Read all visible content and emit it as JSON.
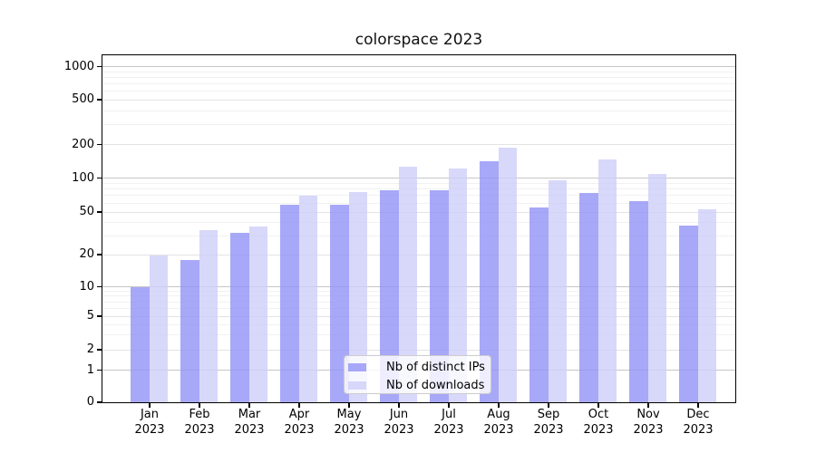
{
  "title": "colorspace 2023",
  "chart_data": {
    "type": "bar",
    "title": "colorspace 2023",
    "categories": [
      "Jan",
      "Feb",
      "Mar",
      "Apr",
      "May",
      "Jun",
      "Jul",
      "Aug",
      "Sep",
      "Oct",
      "Nov",
      "Dec"
    ],
    "year_label": "2023",
    "series": [
      {
        "name": "Nb of distinct IPs",
        "color_hex": "#9292f6",
        "alpha": 0.8,
        "values": [
          10,
          18,
          32,
          59,
          59,
          78,
          78,
          142,
          55,
          75,
          63,
          38
        ]
      },
      {
        "name": "Nb of downloads",
        "color_hex": "#cecef9",
        "alpha": 0.8,
        "values": [
          20,
          34,
          37,
          71,
          76,
          127,
          124,
          190,
          97,
          148,
          110,
          53
        ]
      }
    ],
    "yticks": [
      0,
      1,
      2,
      5,
      10,
      20,
      50,
      100,
      200,
      500,
      1000
    ],
    "yscale": "log-like",
    "ylim": [
      0,
      1300
    ],
    "xlabel": "",
    "ylabel": "",
    "grid": "horizontal major and minor gridlines",
    "legend_position": "lower center"
  }
}
